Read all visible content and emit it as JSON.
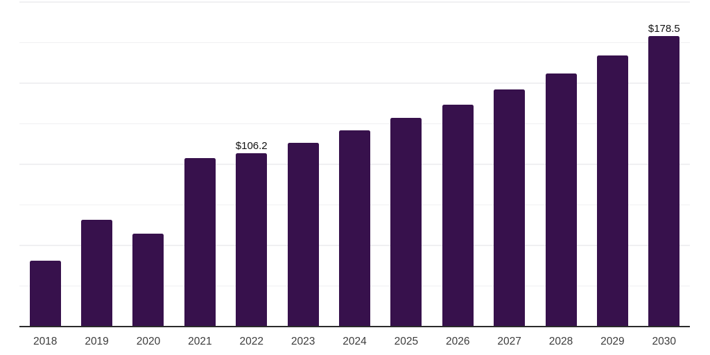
{
  "chart_data": {
    "type": "bar",
    "title": "",
    "xlabel": "",
    "ylabel": "",
    "categories": [
      "2018",
      "2019",
      "2020",
      "2021",
      "2022",
      "2023",
      "2024",
      "2025",
      "2026",
      "2027",
      "2028",
      "2029",
      "2030"
    ],
    "values": [
      40.0,
      65.3,
      56.9,
      103.6,
      106.2,
      112.8,
      120.5,
      128.0,
      136.5,
      145.7,
      155.6,
      166.6,
      178.5
    ],
    "annotations": [
      {
        "category": "2022",
        "text": "$106.2"
      },
      {
        "category": "2030",
        "text": "$178.5"
      }
    ],
    "ylim": [
      0,
      200
    ],
    "gridline_step": 25,
    "grid_visible": true,
    "legend_position": "none",
    "colors": {
      "bar": "#37114c",
      "axis_line": "#2b2b2b",
      "gridline": "#f0f0f2",
      "tick_label": "#3c3c3c",
      "value_label": "#111111",
      "background": "#ffffff"
    }
  }
}
